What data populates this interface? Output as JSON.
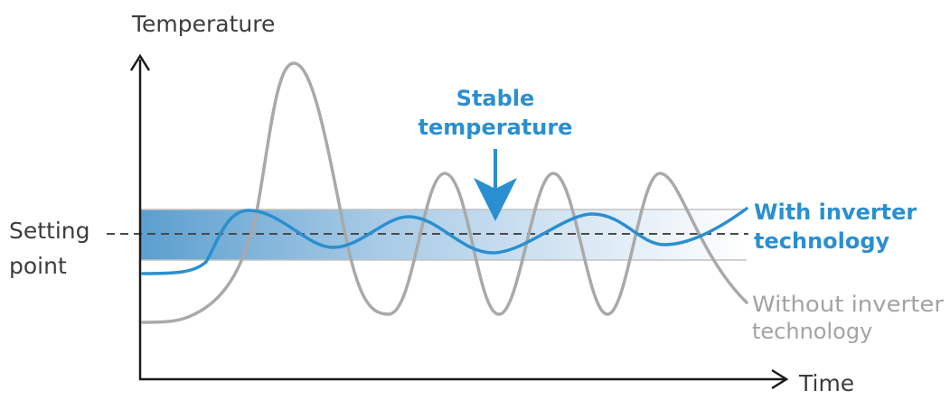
{
  "labels": {
    "y_axis": "Temperature",
    "x_axis": "Time",
    "setting_point": [
      "Setting",
      "point"
    ],
    "stable": [
      "Stable",
      "temperature"
    ],
    "with_inverter": [
      "With inverter",
      "technology"
    ],
    "without_inverter": [
      "Without inverter",
      "technology"
    ]
  },
  "colors": {
    "axis": "#1a1a1a",
    "text": "#3d3d3d",
    "blue": "#2a8fd0",
    "band_strong": "#5b9fcf",
    "band_light": "#ffffff",
    "gray": "#a9a9a9",
    "dash": "#4a4a4a"
  }
}
